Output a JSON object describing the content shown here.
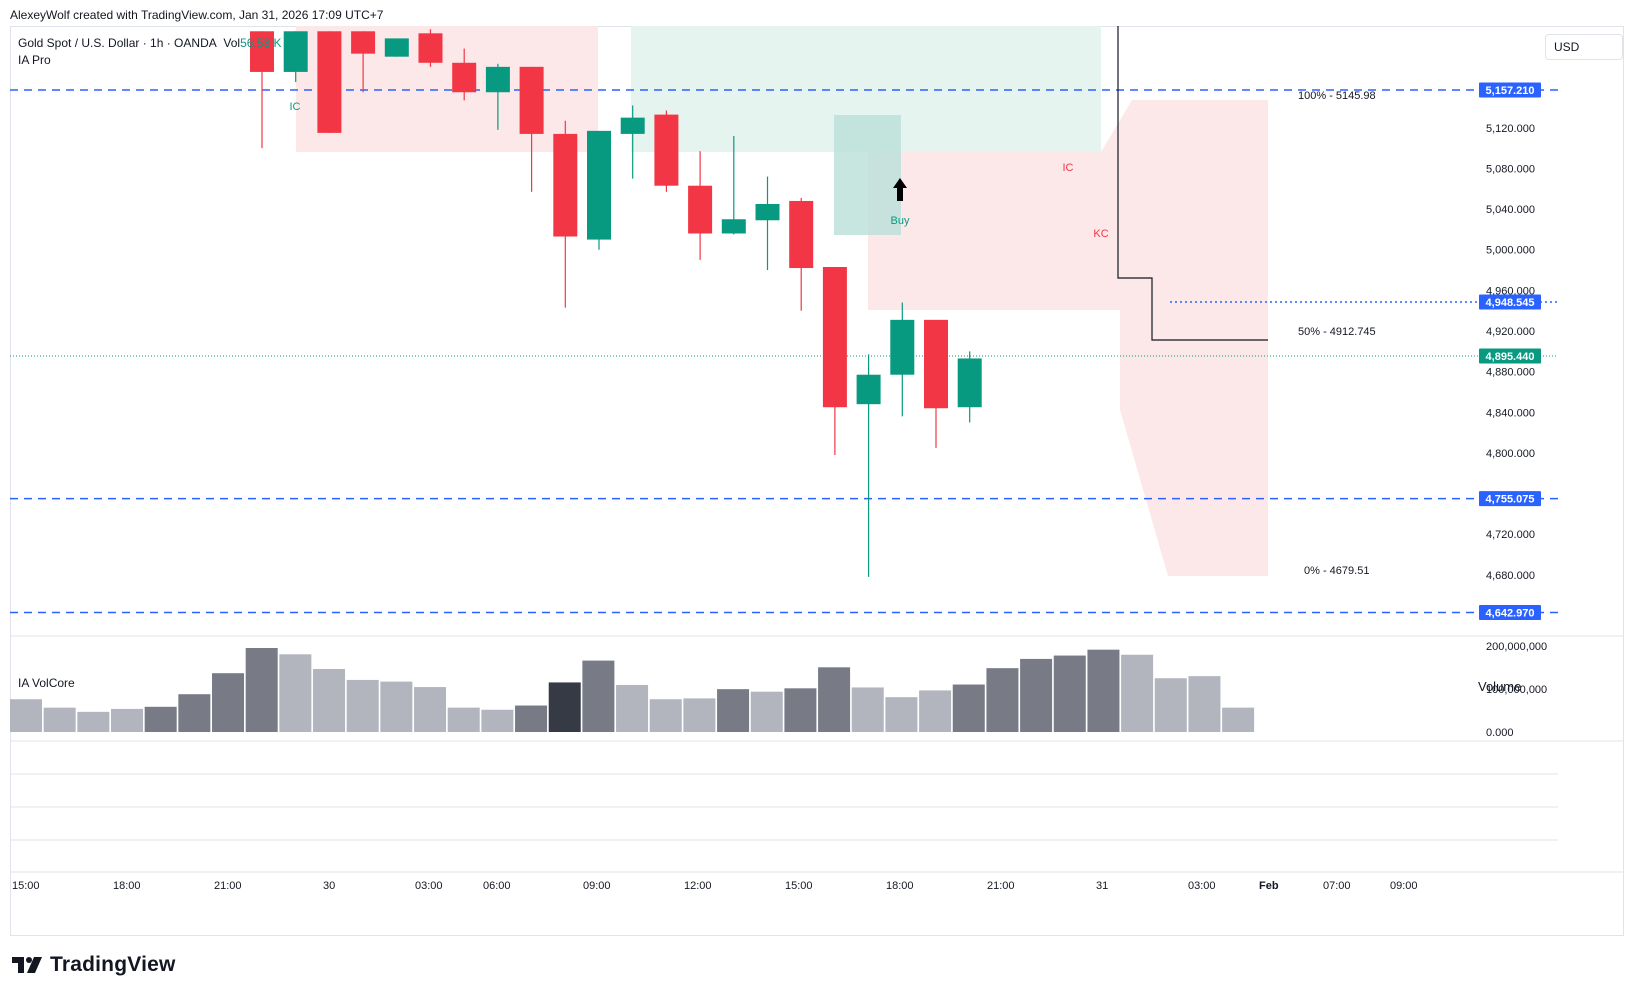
{
  "header": {
    "credit": "AlexeyWolf created with TradingView.com, Jan 31, 2026 17:09 UTC+7"
  },
  "symbol": {
    "title": "Gold Spot / U.S. Dollar · 1h · OANDA",
    "vol_label": "Vol",
    "vol_value": "56.53 K"
  },
  "indicator": {
    "name": "IA Pro"
  },
  "currency": {
    "label": "USD"
  },
  "volume_pane": {
    "title": "IA VolCore",
    "label": "Volume"
  },
  "brand": {
    "name": "TradingView"
  },
  "colors": {
    "up": "#089981",
    "down": "#f23645",
    "line_blue": "#2962ff",
    "last_price": "#089981",
    "zone_red": "#fde8e9",
    "zone_green": "#e6f4f0",
    "buy_box": "#b9e0d8",
    "volume_light": "#b2b5be",
    "volume_mid": "#787b86",
    "volume_dark": "#363a45"
  },
  "chart_data": [
    {
      "type": "candlestick",
      "title": "Gold Spot / U.S. Dollar · 1h · OANDA",
      "x_tick_labels": [
        "15:00",
        "18:00",
        "21:00",
        "30",
        "03:00",
        "06:00",
        "09:00",
        "12:00",
        "15:00",
        "18:00",
        "21:00",
        "31",
        "03:00",
        "Feb",
        "07:00",
        "09:00"
      ],
      "y_tick_labels": [
        "5,120.000",
        "5,080.000",
        "5,040.000",
        "5,000.000",
        "4,960.000",
        "4,920.000",
        "4,880.000",
        "4,840.000",
        "4,800.000",
        "4,720.000",
        "4,680.000"
      ],
      "ylim": [
        4630,
        5215
      ],
      "candles": [
        {
          "open": 5215,
          "high": 5215,
          "close": 5175,
          "low": 5100
        },
        {
          "open": 5175,
          "high": 5215,
          "close": 5215,
          "low": 5165
        },
        {
          "open": 5215,
          "high": 5215,
          "close": 5115,
          "low": 5115
        },
        {
          "open": 5215,
          "high": 5215,
          "close": 5193,
          "low": 5155
        },
        {
          "open": 5190,
          "high": 5205,
          "close": 5208,
          "low": 5190
        },
        {
          "open": 5213,
          "high": 5217,
          "close": 5184,
          "low": 5180
        },
        {
          "open": 5184,
          "high": 5198,
          "close": 5155,
          "low": 5147
        },
        {
          "open": 5155,
          "high": 5183,
          "close": 5180,
          "low": 5118
        },
        {
          "open": 5180,
          "high": 5180,
          "close": 5114,
          "low": 5057
        },
        {
          "open": 5114,
          "high": 5127,
          "close": 5013,
          "low": 4943
        },
        {
          "open": 5010,
          "high": 5116,
          "close": 5117,
          "low": 5000
        },
        {
          "open": 5114,
          "high": 5142,
          "close": 5130,
          "low": 5070
        },
        {
          "open": 5133,
          "high": 5137,
          "close": 5063,
          "low": 5057
        },
        {
          "open": 5063,
          "high": 5097,
          "close": 5016,
          "low": 4990
        },
        {
          "open": 5016,
          "high": 5112,
          "close": 5030,
          "low": 5015
        },
        {
          "open": 5029,
          "high": 5072,
          "close": 5045,
          "low": 4980
        },
        {
          "open": 5048,
          "high": 5051,
          "close": 4982,
          "low": 4940
        },
        {
          "open": 4983,
          "high": 4983,
          "close": 4845,
          "low": 4798
        },
        {
          "open": 4848,
          "high": 4897,
          "close": 4877,
          "low": 4678
        },
        {
          "open": 4877,
          "high": 4948,
          "close": 4931,
          "low": 4836
        },
        {
          "open": 4931,
          "high": 4931,
          "close": 4844,
          "low": 4805
        },
        {
          "open": 4845,
          "high": 4900,
          "close": 4893,
          "low": 4830
        }
      ],
      "levels": [
        {
          "label": "5,157.210",
          "value": 5157.21,
          "style": "dashed"
        },
        {
          "label": "4,948.545",
          "value": 4948.545,
          "style": "dotted"
        },
        {
          "label": "4,895.440",
          "value": 4895.44,
          "style": "last"
        },
        {
          "label": "4,755.075",
          "value": 4755.075,
          "style": "dashed"
        },
        {
          "label": "4,642.970",
          "value": 4642.97,
          "style": "dashed"
        }
      ],
      "fib_labels": [
        {
          "text": "100% - 5145.98",
          "value": 5145.98
        },
        {
          "text": "50% - 4912.745",
          "value": 4912.745
        },
        {
          "text": "0% - 4679.51",
          "value": 4679.51
        }
      ],
      "annotations": [
        {
          "text": "IC",
          "color": "up"
        },
        {
          "text": "Buy",
          "color": "up"
        },
        {
          "text": "IC",
          "color": "down"
        },
        {
          "text": "KC",
          "color": "down"
        }
      ]
    },
    {
      "type": "bar",
      "title": "IA VolCore",
      "ylabel": "Volume",
      "y_tick_labels": [
        "200,000,000",
        "100,000,000",
        "0.000"
      ],
      "ylim": [
        0,
        200000000
      ],
      "values": [
        78000000,
        58000000,
        48000000,
        55000000,
        60000000,
        90000000,
        140000000,
        200000000,
        185000000,
        150000000,
        124000000,
        120000000,
        107000000,
        58000000,
        53000000,
        63000000,
        118000000,
        170000000,
        112000000,
        78000000,
        80000000,
        102000000,
        96000000,
        104000000,
        154000000,
        106000000,
        83000000,
        99000000,
        113000000,
        152000000,
        174000000,
        182000000,
        196000000,
        184000000,
        128000000,
        133000000,
        58000000
      ],
      "shades": [
        "light",
        "light",
        "light",
        "light",
        "mid",
        "mid",
        "mid",
        "mid",
        "light",
        "light",
        "light",
        "light",
        "light",
        "light",
        "light",
        "mid",
        "dark",
        "mid",
        "light",
        "light",
        "light",
        "mid",
        "light",
        "mid",
        "mid",
        "light",
        "light",
        "light",
        "mid",
        "mid",
        "mid",
        "mid",
        "mid",
        "light",
        "light",
        "light",
        "light"
      ]
    }
  ]
}
